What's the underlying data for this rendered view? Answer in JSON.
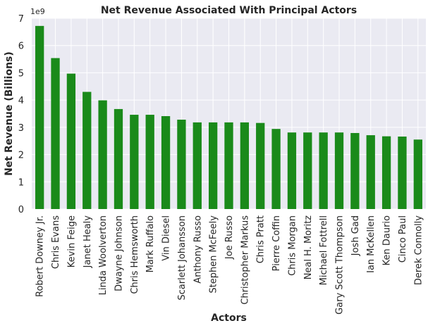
{
  "chart_data": {
    "type": "bar",
    "title": "Net Revenue Associated With Principal Actors",
    "xlabel": "Actors",
    "ylabel": "Net Revenue (Billions)",
    "y_offset_label": "1e9",
    "ylim": [
      0,
      7
    ],
    "yticks": [
      0,
      1,
      2,
      3,
      4,
      5,
      6,
      7
    ],
    "grid": true,
    "bar_color": "#1a8a1a",
    "background_color": "#eaeaf2",
    "grid_color": "#ffffff",
    "categories": [
      "Robert Downey Jr.",
      "Chris Evans",
      "Kevin Feige",
      "Janet Healy",
      "Linda Woolverton",
      "Dwayne Johnson",
      "Chris Hemsworth",
      "Mark Ruffalo",
      "Vin Diesel",
      "Scarlett Johansson",
      "Anthony Russo",
      "Stephen McFeely",
      "Joe Russo",
      "Christopher Markus",
      "Chris Pratt",
      "Pierre Coffin",
      "Chris Morgan",
      "Neal H. Moritz",
      "Michael Fottrell",
      "Gary Scott Thompson",
      "Josh Gad",
      "Ian McKellen",
      "Ken Daurio",
      "Cinco Paul",
      "Derek Connolly"
    ],
    "values": [
      6.72,
      5.54,
      4.97,
      4.3,
      3.99,
      3.67,
      3.46,
      3.46,
      3.41,
      3.28,
      3.18,
      3.18,
      3.18,
      3.18,
      3.16,
      2.94,
      2.81,
      2.81,
      2.81,
      2.81,
      2.79,
      2.71,
      2.67,
      2.66,
      2.55
    ]
  }
}
